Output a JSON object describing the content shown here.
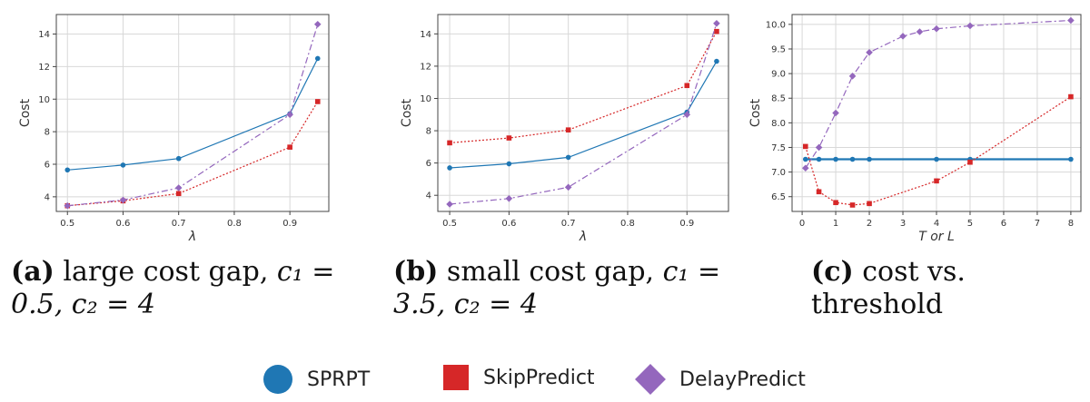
{
  "colors": {
    "sprpt": "#1f77b4",
    "skip": "#d62728",
    "delay": "#9467bd"
  },
  "captions": [
    {
      "tag": "(a)",
      "text": "large cost gap,",
      "formula_line1": "c₁ =",
      "formula_line2": "0.5, c₂ = 4"
    },
    {
      "tag": "(b)",
      "text": "small cost gap,",
      "formula_line1": "c₁ =",
      "formula_line2": "3.5, c₂ = 4"
    },
    {
      "tag": "(c)",
      "text": "cost vs. threshold",
      "formula_line1": "",
      "formula_line2": ""
    }
  ],
  "legend": [
    {
      "label": "SPRPT",
      "marker": "circle"
    },
    {
      "label": "SkipPredict",
      "marker": "square"
    },
    {
      "label": "DelayPredict",
      "marker": "diamond"
    }
  ],
  "chart_data": [
    {
      "type": "line",
      "xlabel": "λ",
      "ylabel": "Cost",
      "xlim": [
        0.48,
        0.97
      ],
      "ylim": [
        3.1,
        15.2
      ],
      "xticks": [
        0.5,
        0.6,
        0.7,
        0.8,
        0.9
      ],
      "yticks": [
        4,
        6,
        8,
        10,
        12,
        14
      ],
      "grid": true,
      "x": [
        0.5,
        0.6,
        0.7,
        0.9,
        0.95
      ],
      "series": [
        {
          "name": "SPRPT",
          "values": [
            5.65,
            5.95,
            6.35,
            9.1,
            12.5
          ]
        },
        {
          "name": "SkipPredict",
          "values": [
            3.45,
            3.75,
            4.2,
            7.05,
            9.85
          ]
        },
        {
          "name": "DelayPredict",
          "values": [
            3.45,
            3.8,
            4.55,
            9.05,
            14.6
          ]
        }
      ]
    },
    {
      "type": "line",
      "xlabel": "λ",
      "ylabel": "Cost",
      "xlim": [
        0.48,
        0.97
      ],
      "ylim": [
        3.0,
        15.2
      ],
      "xticks": [
        0.5,
        0.6,
        0.7,
        0.8,
        0.9
      ],
      "yticks": [
        4,
        6,
        8,
        10,
        12,
        14
      ],
      "grid": true,
      "x": [
        0.5,
        0.6,
        0.7,
        0.9,
        0.95
      ],
      "series": [
        {
          "name": "SPRPT",
          "values": [
            5.7,
            5.95,
            6.35,
            9.15,
            12.3
          ]
        },
        {
          "name": "SkipPredict",
          "values": [
            7.25,
            7.55,
            8.05,
            10.8,
            14.15
          ]
        },
        {
          "name": "DelayPredict",
          "values": [
            3.45,
            3.8,
            4.5,
            9.0,
            14.65
          ]
        }
      ]
    },
    {
      "type": "line",
      "xlabel": "T or L",
      "ylabel": "Cost",
      "xlim": [
        -0.3,
        8.3
      ],
      "ylim": [
        6.2,
        10.2
      ],
      "xticks": [
        0,
        1,
        2,
        3,
        4,
        5,
        6,
        7,
        8
      ],
      "yticks": [
        6.5,
        7.0,
        7.5,
        8.0,
        8.5,
        9.0,
        9.5,
        10.0
      ],
      "grid": true,
      "series": [
        {
          "name": "SPRPT",
          "x": [
            0.1,
            0.5,
            1,
            1.5,
            2,
            4,
            5,
            8
          ],
          "values": [
            7.26,
            7.26,
            7.26,
            7.26,
            7.26,
            7.26,
            7.26,
            7.26
          ]
        },
        {
          "name": "SkipPredict",
          "x": [
            0.1,
            0.5,
            1,
            1.5,
            2,
            4,
            5,
            8
          ],
          "values": [
            7.52,
            6.6,
            6.38,
            6.33,
            6.36,
            6.82,
            7.2,
            8.53
          ]
        },
        {
          "name": "DelayPredict",
          "x": [
            0.1,
            0.5,
            1,
            1.5,
            2,
            3,
            3.5,
            4,
            5,
            8
          ],
          "values": [
            7.08,
            7.5,
            8.2,
            8.95,
            9.43,
            9.76,
            9.85,
            9.91,
            9.97,
            10.08
          ]
        }
      ]
    }
  ]
}
